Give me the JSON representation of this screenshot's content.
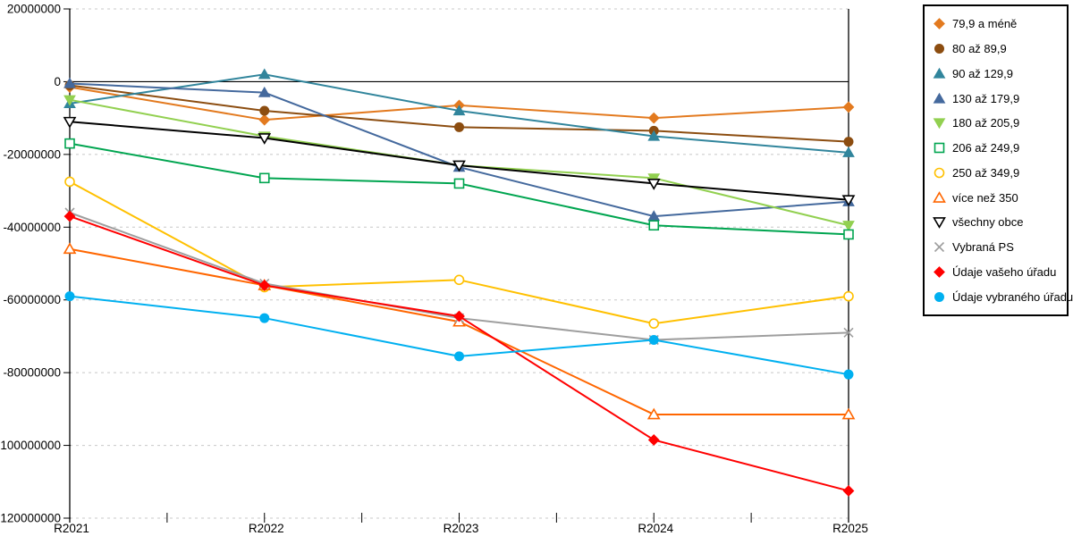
{
  "chart_data": {
    "type": "line",
    "title": "",
    "xlabel": "",
    "ylabel": "",
    "x_categories": [
      "R2021",
      "R2022",
      "R2023",
      "R2024",
      "R2025"
    ],
    "ylim": [
      -120000000,
      20000000
    ],
    "y_ticks": [
      20000000,
      0,
      -20000000,
      -40000000,
      -60000000,
      -80000000,
      -100000000,
      -120000000
    ],
    "grid": "horizontal-dashed",
    "legend_position": "top-right-outside",
    "zero_line_color": "#000000",
    "gridline_color": "#c8c8c8",
    "series": [
      {
        "name": "79,9 a méně",
        "color": "#E37A1F",
        "marker": "diamond",
        "filled": true,
        "values": [
          -1500000,
          -10500000,
          -6500000,
          -10000000,
          -7000000
        ]
      },
      {
        "name": "80 až 89,9",
        "color": "#8C4D10",
        "marker": "circle",
        "filled": true,
        "values": [
          -1000000,
          -8000000,
          -12500000,
          -13500000,
          -16500000
        ]
      },
      {
        "name": "90 až 129,9",
        "color": "#31859C",
        "marker": "triangle-up",
        "filled": true,
        "values": [
          -6000000,
          2000000,
          -8000000,
          -15000000,
          -19500000
        ]
      },
      {
        "name": "130 až 179,9",
        "color": "#44699D",
        "marker": "triangle-up",
        "filled": true,
        "values": [
          -500000,
          -3000000,
          -23500000,
          -37000000,
          -33000000
        ]
      },
      {
        "name": "180 až 205,9",
        "color": "#92D050",
        "marker": "triangle-down",
        "filled": true,
        "values": [
          -5000000,
          -15000000,
          -23000000,
          -26500000,
          -39500000
        ]
      },
      {
        "name": "206 až 249,9",
        "color": "#00A550",
        "marker": "square",
        "filled": false,
        "values": [
          -17000000,
          -26500000,
          -28000000,
          -39500000,
          -42000000
        ]
      },
      {
        "name": "250 až 349,9",
        "color": "#FFC000",
        "marker": "circle",
        "filled": false,
        "values": [
          -27500000,
          -56500000,
          -54500000,
          -66500000,
          -59000000
        ]
      },
      {
        "name": "více než 350",
        "color": "#FF6600",
        "marker": "triangle-up",
        "filled": false,
        "values": [
          -46000000,
          -56000000,
          -66000000,
          -91500000,
          -91500000
        ]
      },
      {
        "name": "všechny obce",
        "color": "#000000",
        "marker": "triangle-down",
        "filled": false,
        "values": [
          -11000000,
          -15500000,
          -23000000,
          -28000000,
          -32500000
        ]
      },
      {
        "name": "Vybraná PS",
        "color": "#9E9E9E",
        "marker": "x",
        "filled": false,
        "values": [
          -36000000,
          -55500000,
          -65000000,
          -71000000,
          -69000000
        ]
      },
      {
        "name": "Údaje vašeho úřadu",
        "color": "#FF0000",
        "marker": "diamond",
        "filled": true,
        "values": [
          -37000000,
          -56000000,
          -64500000,
          -98500000,
          -112500000
        ]
      },
      {
        "name": "Údaje vybraného úřadu",
        "color": "#00B0F0",
        "marker": "circle",
        "filled": true,
        "values": [
          -59000000,
          -65000000,
          -75500000,
          -71000000,
          -80500000
        ]
      }
    ]
  }
}
